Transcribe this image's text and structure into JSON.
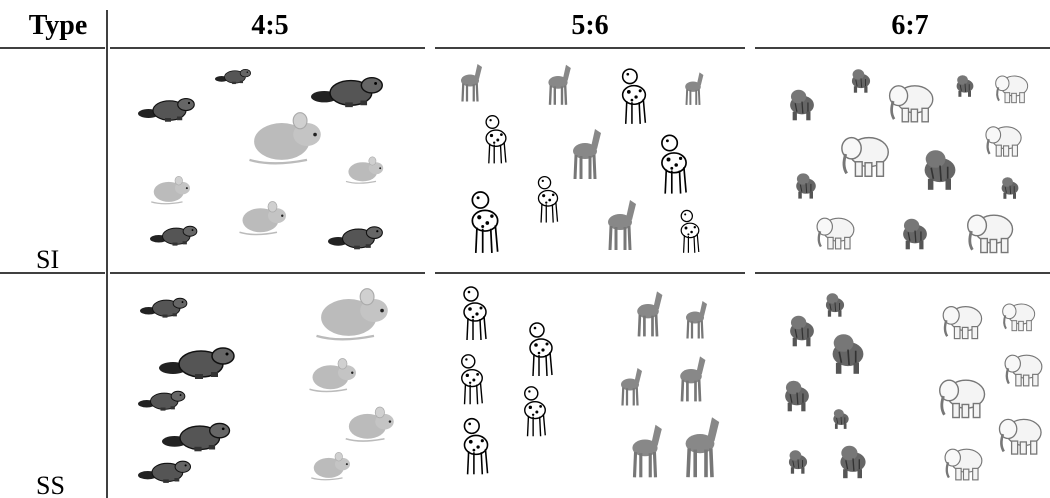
{
  "table": {
    "header": [
      "Type",
      "4:5",
      "5:6",
      "6:7"
    ],
    "rows": [
      [
        "SI"
      ],
      [
        "SS"
      ]
    ]
  }
}
